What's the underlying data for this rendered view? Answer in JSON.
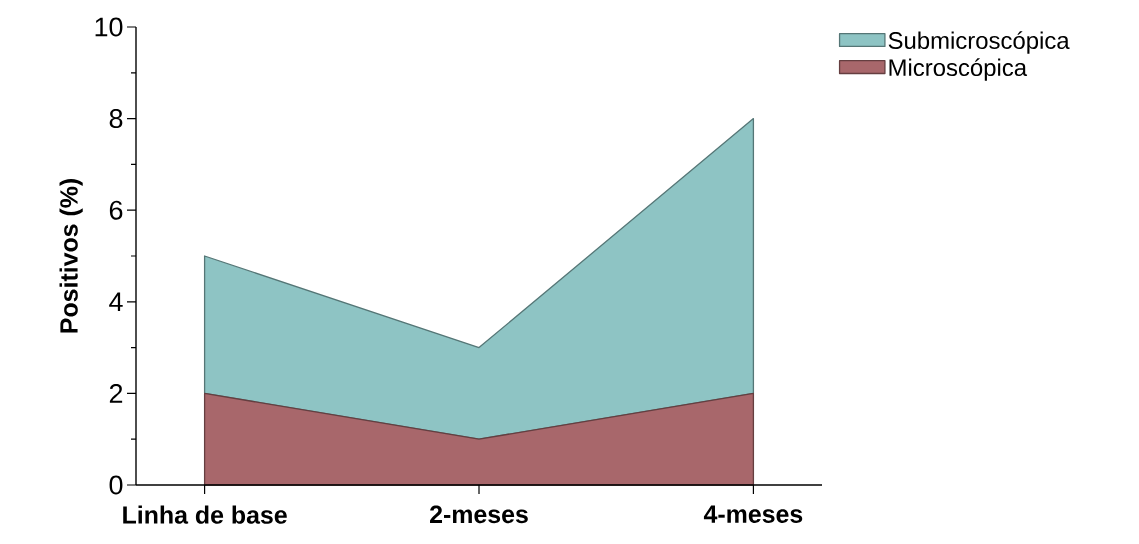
{
  "chart_data": {
    "type": "area",
    "stacked": true,
    "ylabel": "Positivos (%)",
    "categories": [
      "Linha de base",
      "2-meses",
      "4-meses"
    ],
    "series": [
      {
        "name": "Microscópica",
        "color": "#a8676b",
        "values": [
          2,
          1,
          2
        ]
      },
      {
        "name": "Submicroscópica",
        "color": "#8ec4c4",
        "values": [
          3,
          2,
          6
        ]
      }
    ],
    "ylim": [
      0,
      10
    ],
    "yticks": [
      0,
      2,
      4,
      6,
      8,
      10
    ],
    "legend": "top right",
    "grid": false
  }
}
